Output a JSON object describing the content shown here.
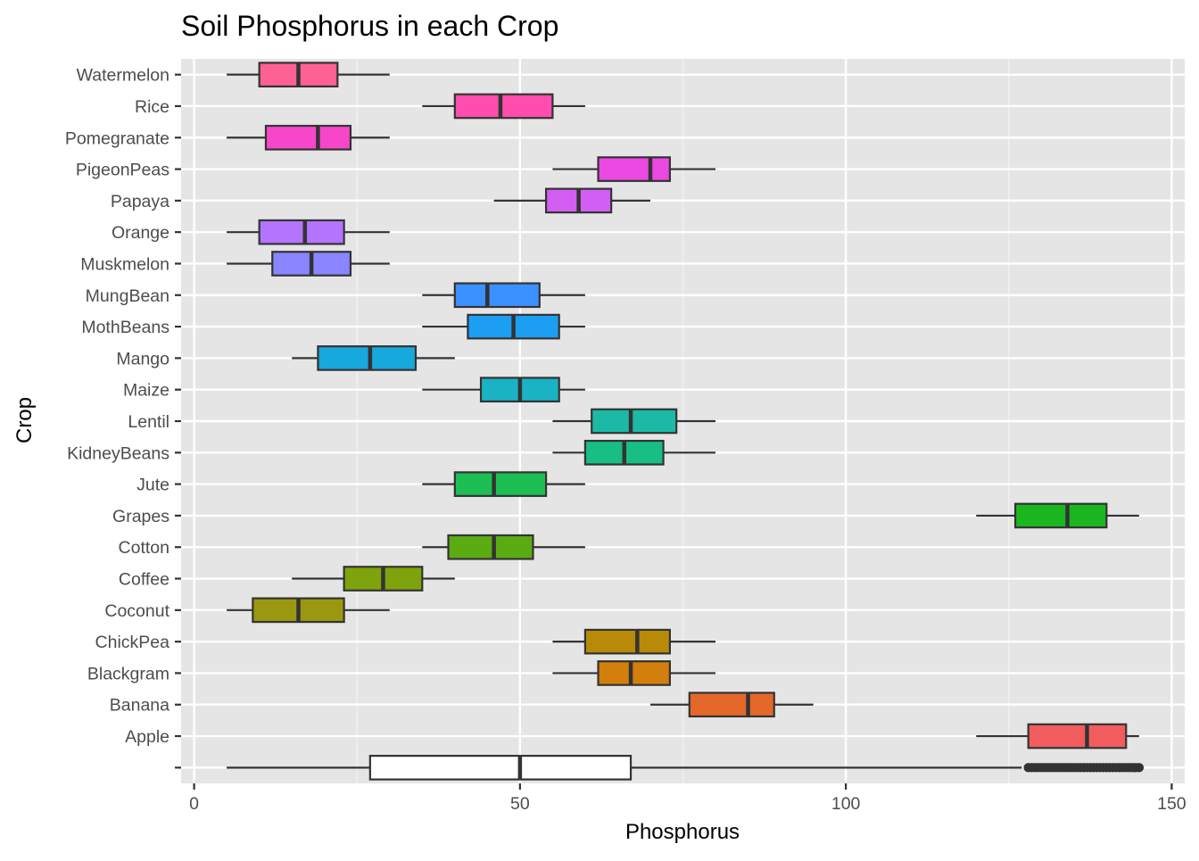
{
  "chart_data": {
    "type": "boxplot",
    "title": "Soil Phosphorus in each Crop",
    "xlabel": "Phosphorus",
    "ylabel": "Crop",
    "xlim": [
      -2,
      152
    ],
    "x_ticks": [
      0,
      50,
      100,
      150
    ],
    "grid": true,
    "background": "#e5e5e5",
    "categories": [
      "Watermelon",
      "Rice",
      "Pomegranate",
      "PigeonPeas",
      "Papaya",
      "Orange",
      "Muskmelon",
      "MungBean",
      "MothBeans",
      "Mango",
      "Maize",
      "Lentil",
      "KidneyBeans",
      "Jute",
      "Grapes",
      "Cotton",
      "Coffee",
      "Coconut",
      "ChickPea",
      "Blackgram",
      "Banana",
      "Apple",
      ""
    ],
    "boxes": [
      {
        "label": "Watermelon",
        "color": "#FF6194",
        "whisker_low": 5,
        "q1": 10,
        "median": 16,
        "q3": 22,
        "whisker_high": 30,
        "outliers": []
      },
      {
        "label": "Rice",
        "color": "#FF4DAF",
        "whisker_low": 35,
        "q1": 40,
        "median": 47,
        "q3": 55,
        "whisker_high": 60,
        "outliers": []
      },
      {
        "label": "Pomegranate",
        "color": "#F846CB",
        "whisker_low": 5,
        "q1": 11,
        "median": 19,
        "q3": 24,
        "whisker_high": 30,
        "outliers": []
      },
      {
        "label": "PigeonPeas",
        "color": "#EB49E2",
        "whisker_low": 55,
        "q1": 62,
        "median": 70,
        "q3": 73,
        "whisker_high": 80,
        "outliers": []
      },
      {
        "label": "Papaya",
        "color": "#D35EF4",
        "whisker_low": 46,
        "q1": 54,
        "median": 59,
        "q3": 64,
        "whisker_high": 70,
        "outliers": []
      },
      {
        "label": "Orange",
        "color": "#B474FE",
        "whisker_low": 5,
        "q1": 10,
        "median": 17,
        "q3": 23,
        "whisker_high": 30,
        "outliers": []
      },
      {
        "label": "Muskmelon",
        "color": "#8A84FF",
        "whisker_low": 5,
        "q1": 12,
        "median": 18,
        "q3": 24,
        "whisker_high": 30,
        "outliers": []
      },
      {
        "label": "MungBean",
        "color": "#3A91FF",
        "whisker_low": 35,
        "q1": 40,
        "median": 45,
        "q3": 53,
        "whisker_high": 60,
        "outliers": []
      },
      {
        "label": "MothBeans",
        "color": "#1C9EF3",
        "whisker_low": 35,
        "q1": 42,
        "median": 49,
        "q3": 56,
        "whisker_high": 60,
        "outliers": []
      },
      {
        "label": "Mango",
        "color": "#17A8DE",
        "whisker_low": 15,
        "q1": 19,
        "median": 27,
        "q3": 34,
        "whisker_high": 40,
        "outliers": []
      },
      {
        "label": "Maize",
        "color": "#1AB2C5",
        "whisker_low": 35,
        "q1": 44,
        "median": 50,
        "q3": 56,
        "whisker_high": 60,
        "outliers": []
      },
      {
        "label": "Lentil",
        "color": "#1CBAA6",
        "whisker_low": 55,
        "q1": 61,
        "median": 67,
        "q3": 74,
        "whisker_high": 80,
        "outliers": []
      },
      {
        "label": "KidneyBeans",
        "color": "#18BE83",
        "whisker_low": 55,
        "q1": 60,
        "median": 66,
        "q3": 72,
        "whisker_high": 80,
        "outliers": []
      },
      {
        "label": "Jute",
        "color": "#1DBF55",
        "whisker_low": 35,
        "q1": 40,
        "median": 46,
        "q3": 54,
        "whisker_high": 60,
        "outliers": []
      },
      {
        "label": "Grapes",
        "color": "#1BB721",
        "whisker_low": 120,
        "q1": 126,
        "median": 134,
        "q3": 140,
        "whisker_high": 145,
        "outliers": []
      },
      {
        "label": "Cotton",
        "color": "#5BAB12",
        "whisker_low": 35,
        "q1": 39,
        "median": 46,
        "q3": 52,
        "whisker_high": 60,
        "outliers": []
      },
      {
        "label": "Coffee",
        "color": "#7FA30C",
        "whisker_low": 15,
        "q1": 23,
        "median": 29,
        "q3": 35,
        "whisker_high": 40,
        "outliers": []
      },
      {
        "label": "Coconut",
        "color": "#9A9810",
        "whisker_low": 5,
        "q1": 9,
        "median": 16,
        "q3": 23,
        "whisker_high": 30,
        "outliers": []
      },
      {
        "label": "ChickPea",
        "color": "#B88A08",
        "whisker_low": 55,
        "q1": 60,
        "median": 68,
        "q3": 73,
        "whisker_high": 80,
        "outliers": []
      },
      {
        "label": "Blackgram",
        "color": "#D27F0B",
        "whisker_low": 55,
        "q1": 62,
        "median": 67,
        "q3": 73,
        "whisker_high": 80,
        "outliers": []
      },
      {
        "label": "Banana",
        "color": "#E4682A",
        "whisker_low": 70,
        "q1": 76,
        "median": 85,
        "q3": 89,
        "whisker_high": 95,
        "outliers": []
      },
      {
        "label": "Apple",
        "color": "#F25C5C",
        "whisker_low": 120,
        "q1": 128,
        "median": 137,
        "q3": 143,
        "whisker_high": 145,
        "outliers": []
      },
      {
        "label": "",
        "color": "#FFFFFF",
        "whisker_low": 5,
        "q1": 27,
        "median": 50,
        "q3": 67,
        "whisker_high": 127,
        "outliers": [
          128,
          128.5,
          129,
          129.5,
          130,
          130.5,
          131,
          131.5,
          132,
          132.5,
          133,
          133.5,
          134,
          134.5,
          135,
          135.5,
          136,
          136.5,
          137,
          137.5,
          138,
          138.5,
          139,
          139.5,
          140,
          140.5,
          141,
          141.5,
          142,
          142.5,
          143,
          143.5,
          144,
          144.5,
          145
        ]
      }
    ]
  }
}
